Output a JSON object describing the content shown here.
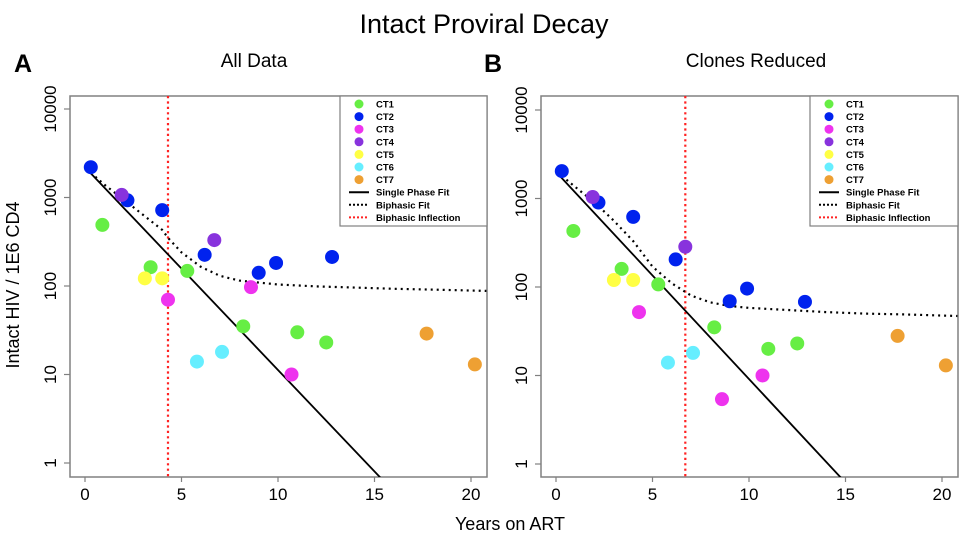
{
  "chart_data": {
    "title": "Intact Proviral Decay",
    "type": "scatter",
    "xlabel": "Years on ART",
    "ylabel": "Intact HIV / 1E6 CD4",
    "legend": {
      "placement": "top-right",
      "entries": [
        {
          "label": "CT1",
          "kind": "point",
          "color": "#66EE44"
        },
        {
          "label": "CT2",
          "kind": "point",
          "color": "#0022EE"
        },
        {
          "label": "CT3",
          "kind": "point",
          "color": "#EE33EE"
        },
        {
          "label": "CT4",
          "kind": "point",
          "color": "#8833DD"
        },
        {
          "label": "CT5",
          "kind": "point",
          "color": "#FFFF44"
        },
        {
          "label": "CT6",
          "kind": "point",
          "color": "#66EEFF"
        },
        {
          "label": "CT7",
          "kind": "point",
          "color": "#EEA033"
        },
        {
          "label": "Single Phase Fit",
          "kind": "solid-line",
          "color": "#000000"
        },
        {
          "label": "Biphasic Fit",
          "kind": "dotted-line",
          "color": "#000000"
        },
        {
          "label": "Biphasic Inflection",
          "kind": "dotted-line",
          "color": "#FF2222"
        }
      ]
    },
    "panels": [
      {
        "letter": "A",
        "title": "All Data",
        "xlim": [
          -0.8,
          20.8
        ],
        "ylim_log10": [
          -0.15,
          4.15
        ],
        "y_scale": "log",
        "xticks": [
          0,
          5,
          10,
          15,
          20
        ],
        "xtick_labels": [
          "0",
          "5",
          "10",
          "15",
          "20"
        ],
        "yticks": [
          1,
          10,
          100,
          1000,
          10000
        ],
        "ytick_labels": [
          "1",
          "10",
          "100",
          "1000",
          "10000"
        ],
        "inflection_x": 4.3,
        "single_phase_fit": {
          "x": [
            0.0,
            15.4
          ],
          "y": [
            2200,
            0.65
          ]
        },
        "biphasic_fit": {
          "x": [
            0.3,
            1,
            2,
            3,
            4,
            4.3,
            5,
            6,
            7,
            8,
            10,
            12,
            14,
            16,
            18,
            20.8
          ],
          "y": [
            1900,
            1400,
            950,
            640,
            430,
            350,
            240,
            165,
            130,
            115,
            104,
            99,
            96,
            93,
            91,
            88
          ]
        },
        "series": [
          {
            "name": "CT1",
            "points": [
              [
                0.9,
                490
              ],
              [
                3.4,
                163
              ],
              [
                5.3,
                148
              ],
              [
                8.2,
                35
              ],
              [
                11.0,
                30
              ],
              [
                12.5,
                23
              ]
            ]
          },
          {
            "name": "CT2",
            "points": [
              [
                0.3,
                2200
              ],
              [
                2.2,
                930
              ],
              [
                4.0,
                720
              ],
              [
                6.2,
                225
              ],
              [
                9.0,
                141
              ],
              [
                9.9,
                182
              ],
              [
                12.8,
                213
              ]
            ]
          },
          {
            "name": "CT3",
            "points": [
              [
                4.3,
                70
              ],
              [
                8.6,
                97
              ],
              [
                10.7,
                10
              ]
            ]
          },
          {
            "name": "CT4",
            "points": [
              [
                1.9,
                1070
              ],
              [
                6.7,
                330
              ]
            ]
          },
          {
            "name": "CT5",
            "points": [
              [
                3.1,
                122
              ],
              [
                4.0,
                122
              ]
            ]
          },
          {
            "name": "CT6",
            "points": [
              [
                5.8,
                14
              ],
              [
                7.1,
                18
              ]
            ]
          },
          {
            "name": "CT7",
            "points": [
              [
                17.7,
                29
              ],
              [
                20.2,
                13
              ]
            ]
          }
        ]
      },
      {
        "letter": "B",
        "title": "Clones Reduced",
        "xlim": [
          -0.8,
          20.8
        ],
        "ylim_log10": [
          -0.15,
          4.15
        ],
        "y_scale": "log",
        "xticks": [
          0,
          5,
          10,
          15,
          20
        ],
        "xtick_labels": [
          "0",
          "5",
          "10",
          "15",
          "20"
        ],
        "yticks": [
          1,
          10,
          100,
          1000,
          10000
        ],
        "ytick_labels": [
          "1",
          "10",
          "100",
          "1000",
          "10000"
        ],
        "inflection_x": 6.7,
        "single_phase_fit": {
          "x": [
            0.0,
            14.9
          ],
          "y": [
            2000,
            0.65
          ]
        },
        "biphasic_fit": {
          "x": [
            0.3,
            1,
            2,
            3,
            4,
            5,
            6,
            6.7,
            7,
            8,
            9,
            10,
            12,
            14,
            16,
            18,
            20.8
          ],
          "y": [
            1800,
            1350,
            900,
            560,
            330,
            170,
            110,
            88,
            80,
            67,
            61,
            58,
            55,
            52,
            50,
            49,
            47
          ]
        },
        "series": [
          {
            "name": "CT1",
            "points": [
              [
                0.9,
                430
              ],
              [
                3.4,
                160
              ],
              [
                5.3,
                107
              ],
              [
                8.2,
                35
              ],
              [
                11.0,
                20
              ],
              [
                12.5,
                23
              ]
            ]
          },
          {
            "name": "CT2",
            "points": [
              [
                0.3,
                2040
              ],
              [
                2.2,
                900
              ],
              [
                4.0,
                620
              ],
              [
                6.2,
                205
              ],
              [
                9.0,
                69
              ],
              [
                9.9,
                96
              ],
              [
                12.9,
                68
              ]
            ]
          },
          {
            "name": "CT3",
            "points": [
              [
                4.3,
                52
              ],
              [
                8.6,
                5.4
              ],
              [
                10.7,
                10
              ]
            ]
          },
          {
            "name": "CT4",
            "points": [
              [
                1.9,
                1040
              ],
              [
                6.7,
                285
              ]
            ]
          },
          {
            "name": "CT5",
            "points": [
              [
                3.0,
                120
              ],
              [
                4.0,
                120
              ]
            ]
          },
          {
            "name": "CT6",
            "points": [
              [
                5.8,
                14
              ],
              [
                7.1,
                18
              ]
            ]
          },
          {
            "name": "CT7",
            "points": [
              [
                17.7,
                28
              ],
              [
                20.2,
                13
              ]
            ]
          }
        ]
      }
    ]
  }
}
